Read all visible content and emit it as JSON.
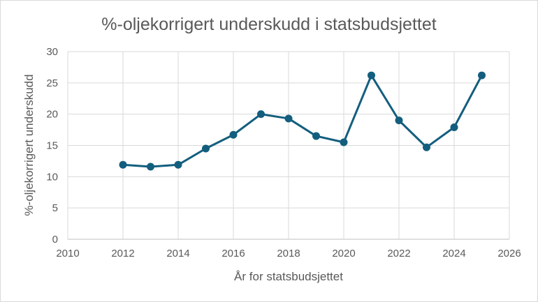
{
  "chart_data": {
    "type": "line",
    "title": "%-oljekorrigert underskudd i statsbudsjettet",
    "xlabel": "År for statsbudsjettet",
    "ylabel": "%-oljekorrigert underskudd",
    "xlim": [
      2010,
      2026
    ],
    "ylim": [
      0,
      30
    ],
    "xticks": [
      2010,
      2012,
      2014,
      2016,
      2018,
      2020,
      2022,
      2024,
      2026
    ],
    "yticks": [
      0,
      5,
      10,
      15,
      20,
      25,
      30
    ],
    "grid": true,
    "series": [
      {
        "color": "#135e7e",
        "x": [
          2012,
          2013,
          2014,
          2015,
          2016,
          2017,
          2018,
          2019,
          2020,
          2021,
          2022,
          2023,
          2024,
          2025
        ],
        "y": [
          11.9,
          11.6,
          11.9,
          14.5,
          16.7,
          20.0,
          19.3,
          16.5,
          15.5,
          26.2,
          19.0,
          14.7,
          17.9,
          26.2
        ]
      }
    ]
  }
}
